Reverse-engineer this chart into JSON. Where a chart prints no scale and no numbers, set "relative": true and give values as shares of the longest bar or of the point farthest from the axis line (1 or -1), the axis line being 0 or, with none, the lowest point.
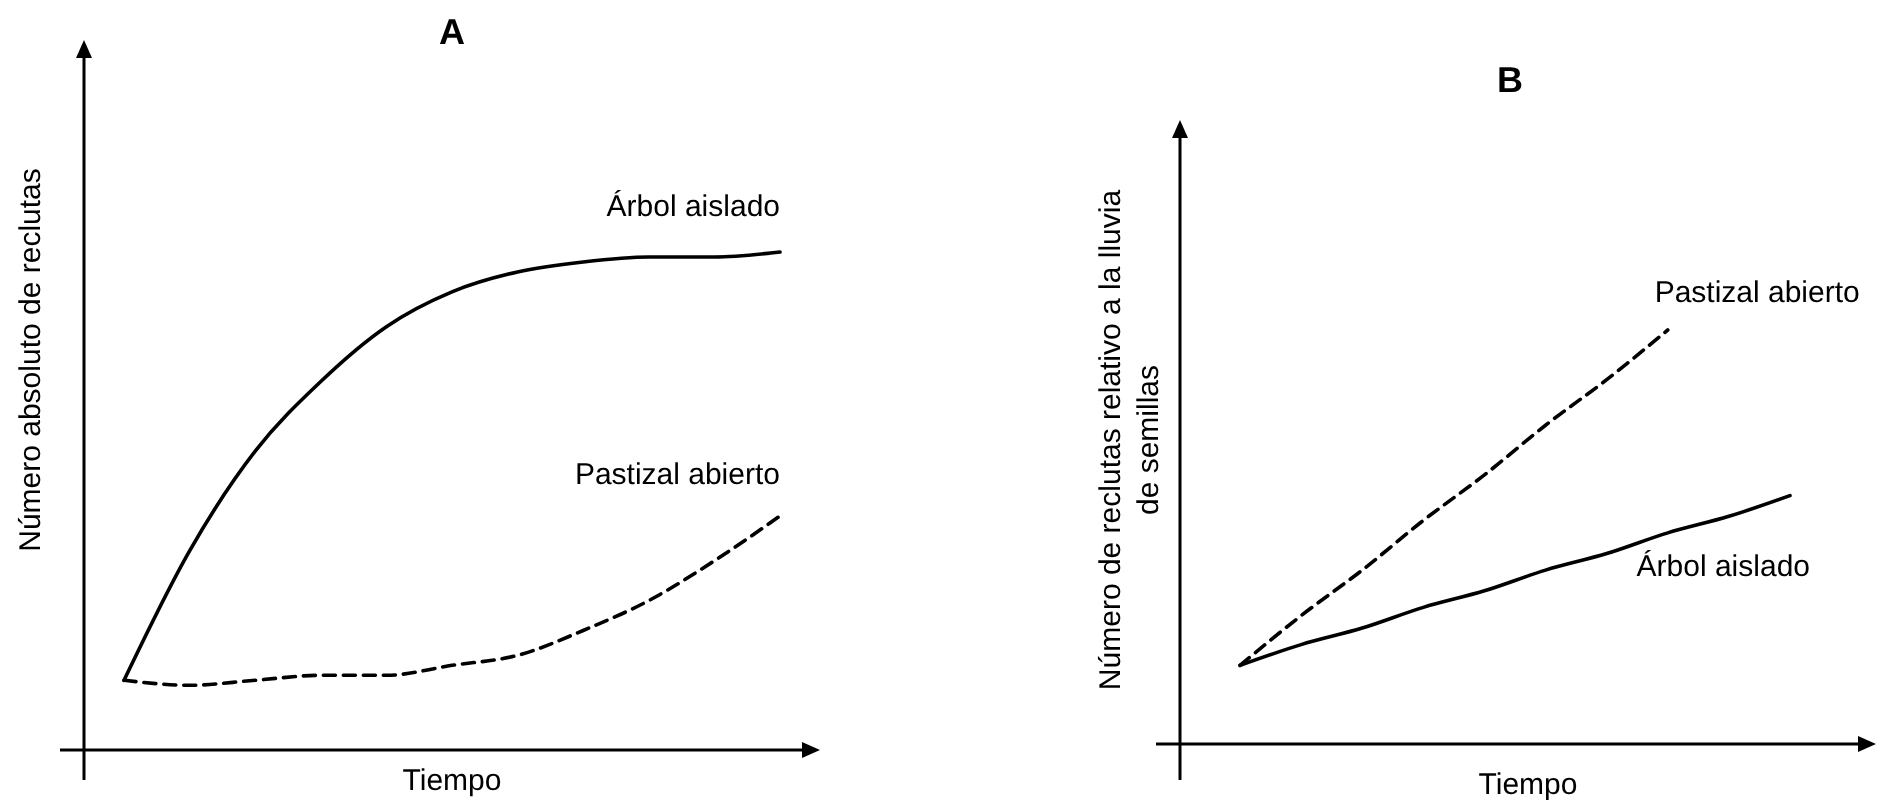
{
  "chart_data": [
    {
      "type": "line",
      "title": "A",
      "xlabel": "Tiempo",
      "ylabel": "Número absoluto de reclutas",
      "relative": true,
      "categories": [
        null,
        null,
        null,
        null,
        null,
        null,
        null,
        null,
        null,
        null,
        null
      ],
      "grid": false,
      "marker": "none",
      "series": [
        {
          "name": "Árbol aislado",
          "color": "#000000",
          "line_style": "solid",
          "values": [
            0.14,
            0.4,
            0.6,
            0.74,
            0.85,
            0.92,
            0.96,
            0.98,
            0.99,
            0.99,
            1.0
          ]
        },
        {
          "name": "Pastizal abierto",
          "color": "#000000",
          "line_style": "dashed",
          "values": [
            0.14,
            0.13,
            0.14,
            0.15,
            0.15,
            0.17,
            0.19,
            0.24,
            0.3,
            0.38,
            0.47
          ]
        }
      ]
    },
    {
      "type": "line",
      "title": "B",
      "xlabel": "Tiempo",
      "ylabel": "Número de reclutas relativo a la lluvia de semillas",
      "relative": true,
      "categories": [
        null,
        null,
        null,
        null,
        null,
        null,
        null,
        null,
        null,
        null
      ],
      "grid": false,
      "marker": "none",
      "series": [
        {
          "name": "Pastizal abierto",
          "color": "#000000",
          "line_style": "dashed",
          "values": [
            0.19,
            0.31,
            0.42,
            0.54,
            0.65,
            0.77,
            0.88,
            1.0,
            null,
            null
          ]
        },
        {
          "name": "Árbol aislado",
          "color": "#000000",
          "line_style": "solid",
          "values": [
            0.19,
            0.24,
            0.28,
            0.33,
            0.37,
            0.42,
            0.46,
            0.51,
            0.55,
            0.6
          ]
        }
      ]
    }
  ]
}
